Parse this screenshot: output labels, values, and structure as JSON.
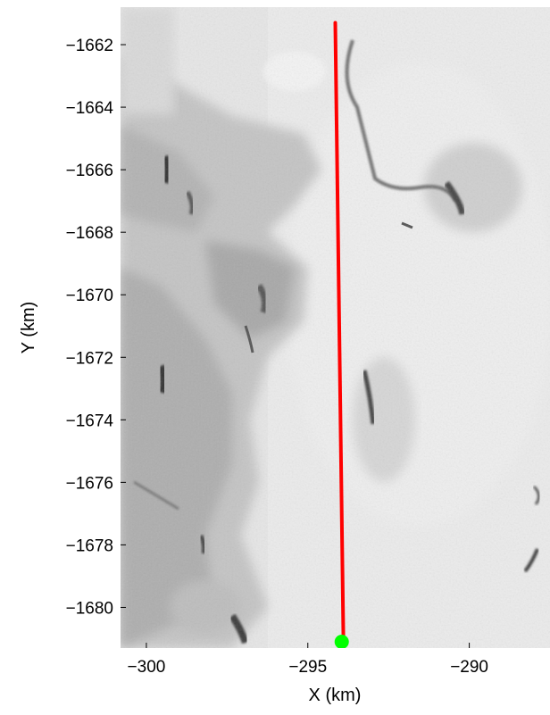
{
  "chart_data": {
    "type": "map",
    "background": "grayscale satellite / radar image of terrain",
    "xlabel": "X (km)",
    "ylabel": "Y (km)",
    "xlim": [
      -300.8,
      -287.5
    ],
    "ylim": [
      -1681.3,
      -1660.8
    ],
    "x_ticks": [
      -300,
      -295,
      -290
    ],
    "x_tick_labels": [
      "−300",
      "−295",
      "−290"
    ],
    "y_ticks": [
      -1662,
      -1664,
      -1666,
      -1668,
      -1670,
      -1672,
      -1674,
      -1676,
      -1678,
      -1680
    ],
    "y_tick_labels": [
      "−1662",
      "−1664",
      "−1666",
      "−1668",
      "−1670",
      "−1672",
      "−1674",
      "−1676",
      "−1678",
      "−1680"
    ],
    "series": [
      {
        "type": "line",
        "color": "#ff0000",
        "points": [
          [
            -294.15,
            -1661.3
          ],
          [
            -293.9,
            -1680.9
          ]
        ]
      },
      {
        "type": "scatter",
        "color": "#00ff00",
        "points": [
          [
            -293.95,
            -1681.1
          ]
        ]
      }
    ],
    "grid": false
  }
}
